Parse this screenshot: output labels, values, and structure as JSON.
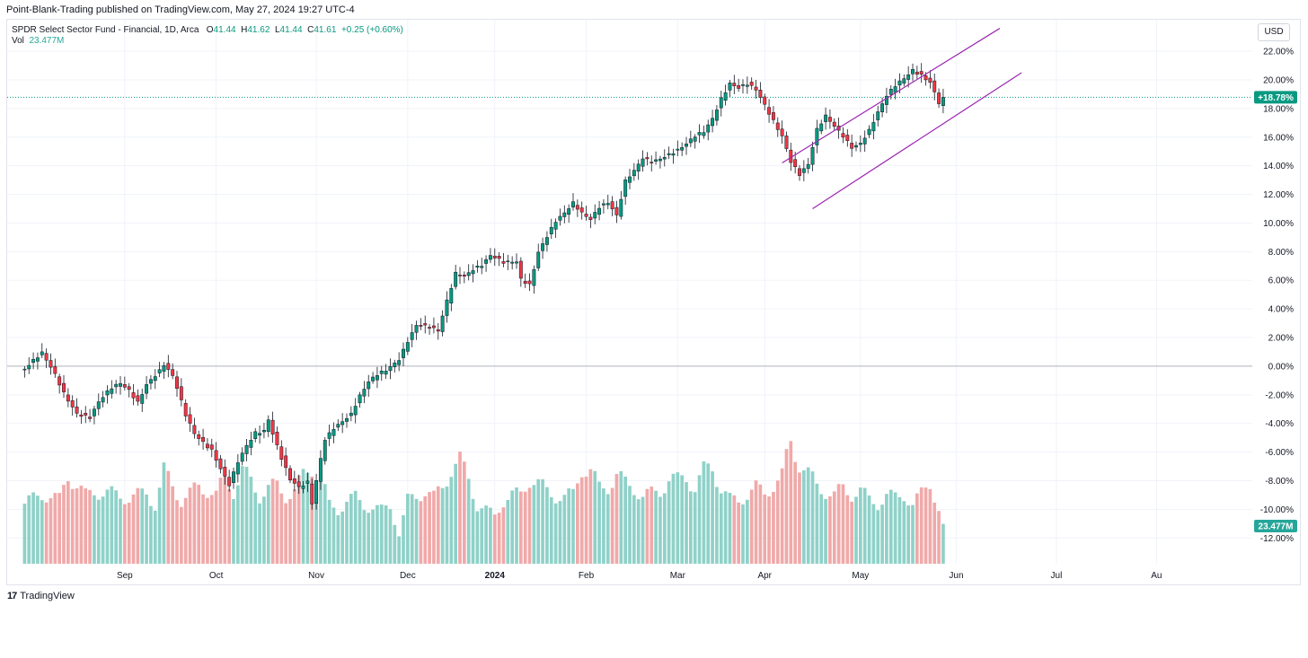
{
  "header": {
    "publisher": "Point-Blank-Trading published on TradingView.com, May 27, 2024 19:27 UTC-4"
  },
  "legend": {
    "symbol": "SPDR Select Sector Fund - Financial, 1D, Arca",
    "open_label": "O",
    "open": "41.44",
    "high_label": "H",
    "high": "41.62",
    "low_label": "L",
    "low": "41.44",
    "close_label": "C",
    "close": "41.61",
    "change": "+0.25 (+0.60%)",
    "vol_label": "Vol",
    "vol_value": "23.477M"
  },
  "currency_button": "USD",
  "footer": {
    "brand": "TradingView",
    "logo": "17"
  },
  "colors": {
    "up": "#089981",
    "down": "#f23645",
    "vol_up": "#8fd1c8",
    "vol_down": "#f0a9a9",
    "channel": "#9c27b0",
    "grid": "#f0f3fa",
    "zero": "#b2b5be"
  },
  "chart_data": {
    "type": "candlestick",
    "title": "",
    "y_unit": "percent change",
    "ylim": [
      -13.8,
      24.2
    ],
    "yticks": [
      22,
      20,
      18,
      16,
      14,
      12,
      10,
      8,
      6,
      4,
      2,
      0,
      -2,
      -4,
      -6,
      -8,
      -10,
      -12
    ],
    "ytick_labels": [
      "22.00%",
      "20.00%",
      "18.00%",
      "16.00%",
      "14.00%",
      "12.00%",
      "10.00%",
      "8.00%",
      "6.00%",
      "4.00%",
      "2.00%",
      "0.00%",
      "-2.00%",
      "-4.00%",
      "-6.00%",
      "-8.00%",
      "-10.00%",
      "-12.00%"
    ],
    "xlim": [
      -4,
      282
    ],
    "xticks": [
      {
        "label": "Sep",
        "bar": 23
      },
      {
        "label": "Oct",
        "bar": 44
      },
      {
        "label": "Nov",
        "bar": 67
      },
      {
        "label": "Dec",
        "bar": 88
      },
      {
        "label": "2024",
        "bar": 108
      },
      {
        "label": "Feb",
        "bar": 129
      },
      {
        "label": "Mar",
        "bar": 150
      },
      {
        "label": "Apr",
        "bar": 170
      },
      {
        "label": "May",
        "bar": 192
      },
      {
        "label": "Jun",
        "bar": 214
      },
      {
        "label": "Jul",
        "bar": 237
      },
      {
        "label": "Au",
        "bar": 260
      }
    ],
    "current_value_label": "+18.78%",
    "current_value": 18.78,
    "volume_label": "23.477M",
    "volume_last": 0.37,
    "channel": {
      "upper": [
        [
          174,
          14.2
        ],
        [
          224,
          23.6
        ]
      ],
      "lower": [
        [
          181,
          11.0
        ],
        [
          229,
          20.5
        ]
      ]
    },
    "path": [
      [
        0,
        -0.2
      ],
      [
        4,
        0.8
      ],
      [
        7,
        -0.6
      ],
      [
        9,
        -1.8
      ],
      [
        12,
        -3.2
      ],
      [
        15,
        -3.6
      ],
      [
        17,
        -2.6
      ],
      [
        20,
        -1.6
      ],
      [
        22,
        -1.2
      ],
      [
        24,
        -1.6
      ],
      [
        26,
        -2.4
      ],
      [
        28,
        -1.2
      ],
      [
        31,
        -0.4
      ],
      [
        32,
        0.0
      ],
      [
        34,
        -0.8
      ],
      [
        35,
        -1.6
      ],
      [
        37,
        -3.4
      ],
      [
        39,
        -4.6
      ],
      [
        41,
        -5.2
      ],
      [
        43,
        -5.8
      ],
      [
        45,
        -7.2
      ],
      [
        47,
        -8.4
      ],
      [
        49,
        -6.8
      ],
      [
        51,
        -5.6
      ],
      [
        53,
        -4.6
      ],
      [
        55,
        -4.4
      ],
      [
        56,
        -3.6
      ],
      [
        57,
        -4.6
      ],
      [
        59,
        -6.4
      ],
      [
        61,
        -8.0
      ],
      [
        63,
        -8.6
      ],
      [
        65,
        -8.2
      ],
      [
        66,
        -9.6
      ],
      [
        68,
        -6.4
      ],
      [
        69,
        -5.0
      ],
      [
        71,
        -4.2
      ],
      [
        73,
        -3.8
      ],
      [
        75,
        -3.4
      ],
      [
        77,
        -2.2
      ],
      [
        79,
        -1.2
      ],
      [
        81,
        -0.6
      ],
      [
        83,
        -0.2
      ],
      [
        86,
        0.6
      ],
      [
        88,
        1.8
      ],
      [
        90,
        2.8
      ],
      [
        93,
        2.6
      ],
      [
        95,
        2.4
      ],
      [
        97,
        4.6
      ],
      [
        99,
        6.6
      ],
      [
        101,
        6.4
      ],
      [
        103,
        6.8
      ],
      [
        105,
        7.0
      ],
      [
        107,
        7.6
      ],
      [
        110,
        7.2
      ],
      [
        113,
        7.4
      ],
      [
        114,
        6.2
      ],
      [
        116,
        5.8
      ],
      [
        118,
        8.0
      ],
      [
        120,
        9.0
      ],
      [
        122,
        10.0
      ],
      [
        124,
        10.6
      ],
      [
        126,
        11.4
      ],
      [
        128,
        10.8
      ],
      [
        130,
        10.4
      ],
      [
        132,
        11.2
      ],
      [
        134,
        11.4
      ],
      [
        136,
        10.4
      ],
      [
        138,
        12.8
      ],
      [
        140,
        13.6
      ],
      [
        142,
        14.6
      ],
      [
        144,
        14.4
      ],
      [
        146,
        14.6
      ],
      [
        148,
        14.8
      ],
      [
        150,
        15.0
      ],
      [
        152,
        15.4
      ],
      [
        154,
        16.0
      ],
      [
        156,
        16.4
      ],
      [
        158,
        17.4
      ],
      [
        160,
        18.8
      ],
      [
        162,
        19.8
      ],
      [
        164,
        19.4
      ],
      [
        166,
        19.6
      ],
      [
        168,
        19.2
      ],
      [
        170,
        18.2
      ],
      [
        172,
        17.2
      ],
      [
        174,
        16.2
      ],
      [
        176,
        14.4
      ],
      [
        178,
        13.4
      ],
      [
        180,
        14.0
      ],
      [
        182,
        16.4
      ],
      [
        184,
        17.4
      ],
      [
        186,
        16.8
      ],
      [
        188,
        16.2
      ],
      [
        190,
        15.4
      ],
      [
        192,
        15.6
      ],
      [
        194,
        16.4
      ],
      [
        196,
        17.6
      ],
      [
        198,
        18.8
      ],
      [
        200,
        19.6
      ],
      [
        202,
        20.2
      ],
      [
        204,
        20.8
      ],
      [
        206,
        20.4
      ],
      [
        208,
        19.8
      ],
      [
        210,
        18.3
      ],
      [
        211,
        18.78
      ]
    ],
    "volume": [
      [
        0,
        0.62
      ],
      [
        4,
        0.72
      ],
      [
        8,
        0.66
      ],
      [
        10,
        0.92
      ],
      [
        14,
        0.7
      ],
      [
        16,
        0.75
      ],
      [
        20,
        0.72
      ],
      [
        24,
        0.68
      ],
      [
        28,
        0.73
      ],
      [
        30,
        0.6
      ],
      [
        32,
        0.95
      ],
      [
        34,
        0.8
      ],
      [
        36,
        0.65
      ],
      [
        38,
        0.72
      ],
      [
        40,
        0.8
      ],
      [
        42,
        0.76
      ],
      [
        44,
        0.7
      ],
      [
        46,
        0.9
      ],
      [
        48,
        0.75
      ],
      [
        50,
        0.95
      ],
      [
        52,
        0.85
      ],
      [
        54,
        0.7
      ],
      [
        56,
        0.78
      ],
      [
        58,
        0.8
      ],
      [
        60,
        0.7
      ],
      [
        62,
        0.75
      ],
      [
        64,
        0.9
      ],
      [
        66,
        1.0
      ],
      [
        68,
        0.9
      ],
      [
        70,
        0.6
      ],
      [
        72,
        0.55
      ],
      [
        74,
        0.65
      ],
      [
        76,
        0.68
      ],
      [
        78,
        0.6
      ],
      [
        80,
        0.58
      ],
      [
        82,
        0.55
      ],
      [
        84,
        0.6
      ],
      [
        86,
        0.3
      ],
      [
        88,
        0.65
      ],
      [
        90,
        0.7
      ],
      [
        92,
        0.75
      ],
      [
        94,
        0.68
      ],
      [
        96,
        0.8
      ],
      [
        98,
        0.98
      ],
      [
        100,
        1.05
      ],
      [
        102,
        0.88
      ],
      [
        104,
        0.6
      ],
      [
        106,
        0.55
      ],
      [
        108,
        0.5
      ],
      [
        110,
        0.65
      ],
      [
        112,
        0.7
      ],
      [
        114,
        0.72
      ],
      [
        116,
        0.88
      ],
      [
        118,
        0.82
      ],
      [
        120,
        0.75
      ],
      [
        122,
        0.7
      ],
      [
        124,
        0.68
      ],
      [
        126,
        0.72
      ],
      [
        128,
        1.0
      ],
      [
        130,
        0.95
      ],
      [
        132,
        0.78
      ],
      [
        134,
        0.8
      ],
      [
        136,
        0.92
      ],
      [
        138,
        0.82
      ],
      [
        140,
        0.78
      ],
      [
        142,
        0.7
      ],
      [
        144,
        0.72
      ],
      [
        146,
        0.75
      ],
      [
        148,
        0.88
      ],
      [
        150,
        0.85
      ],
      [
        152,
        0.9
      ],
      [
        154,
        0.78
      ],
      [
        156,
        0.95
      ],
      [
        158,
        1.0
      ],
      [
        160,
        0.78
      ],
      [
        162,
        0.66
      ],
      [
        164,
        0.65
      ],
      [
        166,
        0.72
      ],
      [
        168,
        0.78
      ],
      [
        170,
        0.72
      ],
      [
        172,
        0.82
      ],
      [
        174,
        0.9
      ],
      [
        176,
        1.25
      ],
      [
        178,
        1.05
      ],
      [
        180,
        0.92
      ],
      [
        182,
        0.8
      ],
      [
        184,
        0.75
      ],
      [
        186,
        0.7
      ],
      [
        188,
        0.78
      ],
      [
        190,
        0.72
      ],
      [
        192,
        0.75
      ],
      [
        194,
        0.66
      ],
      [
        196,
        0.62
      ],
      [
        198,
        0.7
      ],
      [
        200,
        0.68
      ],
      [
        202,
        0.72
      ],
      [
        204,
        0.6
      ],
      [
        206,
        0.72
      ],
      [
        208,
        0.85
      ],
      [
        210,
        0.55
      ],
      [
        211,
        0.37
      ]
    ]
  }
}
